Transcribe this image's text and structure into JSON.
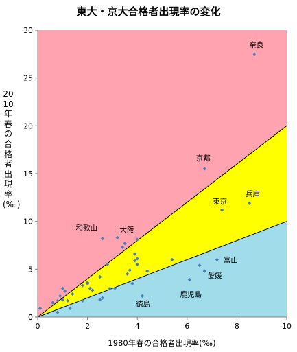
{
  "chart_data": {
    "type": "scatter",
    "title": "東大・京大合格者出現率の変化",
    "xlabel": "1980年春の合格者出現率(‰)",
    "ylabel": "2010年春の合格者出現率(‰)",
    "xlim": [
      0,
      10
    ],
    "ylim": [
      0,
      30
    ],
    "xticks": [
      "0",
      "2",
      "4",
      "6",
      "8",
      "10"
    ],
    "yticks": [
      "0",
      "5",
      "10",
      "15",
      "20",
      "25",
      "30"
    ],
    "grid": false,
    "regions": [
      {
        "name": "upper",
        "color": "#FFA3B0",
        "from_slope": 2,
        "to": "top"
      },
      {
        "name": "middle",
        "color": "#FFFF00",
        "from_slope": 1,
        "to_slope": 2
      },
      {
        "name": "lower",
        "color": "#A0DCEA",
        "from": "bottom",
        "to_slope": 1
      }
    ],
    "boundary_lines": [
      {
        "slope": 2,
        "color": "#000000"
      },
      {
        "slope": 1,
        "color": "#000000"
      }
    ],
    "marker_color": "#4A7EBB",
    "points": [
      {
        "x": 8.7,
        "y": 27.5,
        "label": "奈良"
      },
      {
        "x": 6.7,
        "y": 15.5,
        "label": "京都"
      },
      {
        "x": 8.5,
        "y": 11.9,
        "label": "兵庫"
      },
      {
        "x": 7.4,
        "y": 11.2,
        "label": "東京"
      },
      {
        "x": 2.6,
        "y": 8.2,
        "label": "和歌山"
      },
      {
        "x": 3.5,
        "y": 7.7,
        "label": "大阪"
      },
      {
        "x": 7.2,
        "y": 6.0,
        "label": "富山"
      },
      {
        "x": 6.7,
        "y": 4.8,
        "label": "愛媛"
      },
      {
        "x": 6.1,
        "y": 3.9,
        "label": "鹿児島"
      },
      {
        "x": 4.2,
        "y": 2.2,
        "label": "徳島"
      },
      {
        "x": 0.1,
        "y": 0.9
      },
      {
        "x": 0.6,
        "y": 1.5
      },
      {
        "x": 0.8,
        "y": 1.7
      },
      {
        "x": 0.8,
        "y": 0.5
      },
      {
        "x": 0.9,
        "y": 2.2
      },
      {
        "x": 1.0,
        "y": 3.0
      },
      {
        "x": 1.0,
        "y": 1.8
      },
      {
        "x": 1.1,
        "y": 2.7
      },
      {
        "x": 1.2,
        "y": 1.7
      },
      {
        "x": 1.3,
        "y": 0.9
      },
      {
        "x": 1.4,
        "y": 2.4
      },
      {
        "x": 1.8,
        "y": 3.3
      },
      {
        "x": 1.8,
        "y": 1.7
      },
      {
        "x": 2.0,
        "y": 3.6
      },
      {
        "x": 2.0,
        "y": 3.5
      },
      {
        "x": 2.1,
        "y": 3.0
      },
      {
        "x": 2.2,
        "y": 2.8
      },
      {
        "x": 2.5,
        "y": 4.2
      },
      {
        "x": 2.5,
        "y": 1.8
      },
      {
        "x": 2.6,
        "y": 2.0
      },
      {
        "x": 2.8,
        "y": 5.5
      },
      {
        "x": 2.9,
        "y": 3.0
      },
      {
        "x": 3.1,
        "y": 3.0
      },
      {
        "x": 3.2,
        "y": 8.3
      },
      {
        "x": 3.4,
        "y": 7.3
      },
      {
        "x": 3.6,
        "y": 4.5
      },
      {
        "x": 3.7,
        "y": 4.9
      },
      {
        "x": 3.8,
        "y": 3.5
      },
      {
        "x": 3.9,
        "y": 6.6
      },
      {
        "x": 3.9,
        "y": 5.9
      },
      {
        "x": 4.0,
        "y": 8.1
      },
      {
        "x": 4.0,
        "y": 6.1
      },
      {
        "x": 4.0,
        "y": 5.5
      },
      {
        "x": 4.4,
        "y": 4.8
      },
      {
        "x": 5.4,
        "y": 6.0
      },
      {
        "x": 6.5,
        "y": 5.4
      }
    ]
  }
}
